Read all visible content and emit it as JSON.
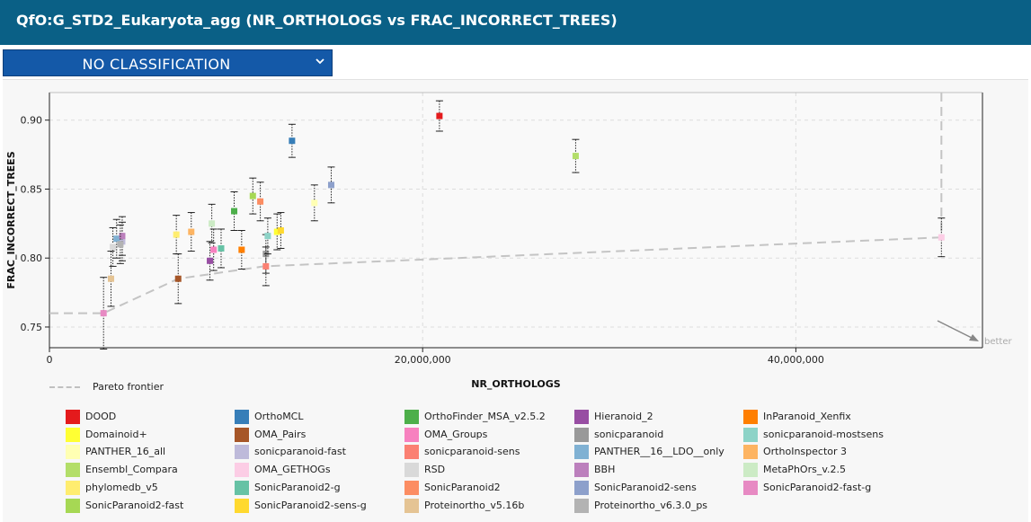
{
  "header": {
    "title": "QfO:G_STD2_Eukaryota_agg (NR_ORTHOLOGS vs FRAC_INCORRECT_TREES)"
  },
  "classification": {
    "selected": "NO CLASSIFICATION",
    "icon": "chevron-down-icon"
  },
  "chart_data": {
    "type": "scatter",
    "xlabel": "NR_ORTHOLOGS",
    "ylabel": "FRAC_INCORRECT_TREES",
    "xlim": [
      0,
      50000000
    ],
    "ylim": [
      0.735,
      0.92
    ],
    "xticks": [
      0,
      20000000,
      40000000
    ],
    "xtick_labels": [
      "0",
      "20,000,000",
      "40,000,000"
    ],
    "yticks": [
      0.75,
      0.8,
      0.85,
      0.9
    ],
    "ytick_labels": [
      "0.75",
      "0.80",
      "0.85",
      "0.90"
    ],
    "grid": true,
    "better_label": "better",
    "pareto_label": "Pareto frontier",
    "pareto_frontier": [
      {
        "x": -2000000,
        "y": 0.76
      },
      {
        "x": 2900000,
        "y": 0.76
      },
      {
        "x": 6900000,
        "y": 0.785
      },
      {
        "x": 11500000,
        "y": 0.794
      },
      {
        "x": 47800000,
        "y": 0.815
      }
    ],
    "series": [
      {
        "name": "DOOD",
        "color": "#e41a1c",
        "x": 20900000,
        "y": 0.903,
        "err": 0.011
      },
      {
        "name": "OrthoMCL",
        "color": "#377eb8",
        "x": 13000000,
        "y": 0.885,
        "err": 0.012
      },
      {
        "name": "OrthoFinder_MSA_v2.5.2",
        "color": "#4daf4a",
        "x": 9900000,
        "y": 0.834,
        "err": 0.014
      },
      {
        "name": "Hieranoid_2",
        "color": "#984ea3",
        "x": 8600000,
        "y": 0.798,
        "err": 0.014
      },
      {
        "name": "InParanoid_Xenfix",
        "color": "#ff7f00",
        "x": 10300000,
        "y": 0.806,
        "err": 0.014
      },
      {
        "name": "Domainoid+",
        "color": "#ffff33",
        "x": 12200000,
        "y": 0.819,
        "err": 0.013
      },
      {
        "name": "OMA_Pairs",
        "color": "#a65628",
        "x": 6900000,
        "y": 0.785,
        "err": 0.018
      },
      {
        "name": "OMA_Groups",
        "color": "#f781bf",
        "x": 8800000,
        "y": 0.806,
        "err": 0.015
      },
      {
        "name": "sonicparanoid",
        "color": "#999999",
        "x": 11600000,
        "y": 0.803,
        "err": 0.014
      },
      {
        "name": "sonicparanoid-mostsens",
        "color": "#8dd3c7",
        "x": 11700000,
        "y": 0.816,
        "err": 0.013
      },
      {
        "name": "PANTHER_16_all",
        "color": "#ffffb3",
        "x": 14200000,
        "y": 0.84,
        "err": 0.013
      },
      {
        "name": "sonicparanoid-fast",
        "color": "#bebada",
        "x": 3900000,
        "y": 0.812,
        "err": 0.014
      },
      {
        "name": "sonicparanoid-sens",
        "color": "#fb8072",
        "x": 11600000,
        "y": 0.794,
        "err": 0.014
      },
      {
        "name": "PANTHER__16__LDO__only",
        "color": "#80b1d3",
        "x": 3600000,
        "y": 0.814,
        "err": 0.014
      },
      {
        "name": "OrthoInspector 3",
        "color": "#fdb462",
        "x": 7600000,
        "y": 0.819,
        "err": 0.014
      },
      {
        "name": "Ensembl_Compara",
        "color": "#b3de69",
        "x": 28200000,
        "y": 0.874,
        "err": 0.012
      },
      {
        "name": "OMA_GETHOGs",
        "color": "#fccde5",
        "x": 47800000,
        "y": 0.815,
        "err": 0.014
      },
      {
        "name": "RSD",
        "color": "#d9d9d9",
        "x": 3400000,
        "y": 0.808,
        "err": 0.014
      },
      {
        "name": "BBH",
        "color": "#bc80bd",
        "x": 3900000,
        "y": 0.816,
        "err": 0.014
      },
      {
        "name": "MetaPhOrs_v.2.5",
        "color": "#ccebc5",
        "x": 8700000,
        "y": 0.825,
        "err": 0.014
      },
      {
        "name": "phylomedb_v5",
        "color": "#ffed6f",
        "x": 6800000,
        "y": 0.817,
        "err": 0.014
      },
      {
        "name": "SonicParanoid2-g",
        "color": "#66c2a5",
        "x": 9200000,
        "y": 0.807,
        "err": 0.014
      },
      {
        "name": "SonicParanoid2",
        "color": "#fc8d62",
        "x": 11300000,
        "y": 0.841,
        "err": 0.014
      },
      {
        "name": "SonicParanoid2-sens",
        "color": "#8da0cb",
        "x": 15100000,
        "y": 0.853,
        "err": 0.013
      },
      {
        "name": "SonicParanoid2-fast-g",
        "color": "#e78ac3",
        "x": 2900000,
        "y": 0.76,
        "err": 0.026
      },
      {
        "name": "SonicParanoid2-fast",
        "color": "#a6d854",
        "x": 10900000,
        "y": 0.845,
        "err": 0.013
      },
      {
        "name": "SonicParanoid2-sens-g",
        "color": "#ffd92f",
        "x": 12400000,
        "y": 0.82,
        "err": 0.013
      },
      {
        "name": "Proteinortho_v5.16b",
        "color": "#e5c494",
        "x": 3300000,
        "y": 0.785,
        "err": 0.02
      },
      {
        "name": "Proteinortho_v6.3.0_ps",
        "color": "#b3b3b3",
        "x": 3800000,
        "y": 0.81,
        "err": 0.014
      }
    ]
  }
}
